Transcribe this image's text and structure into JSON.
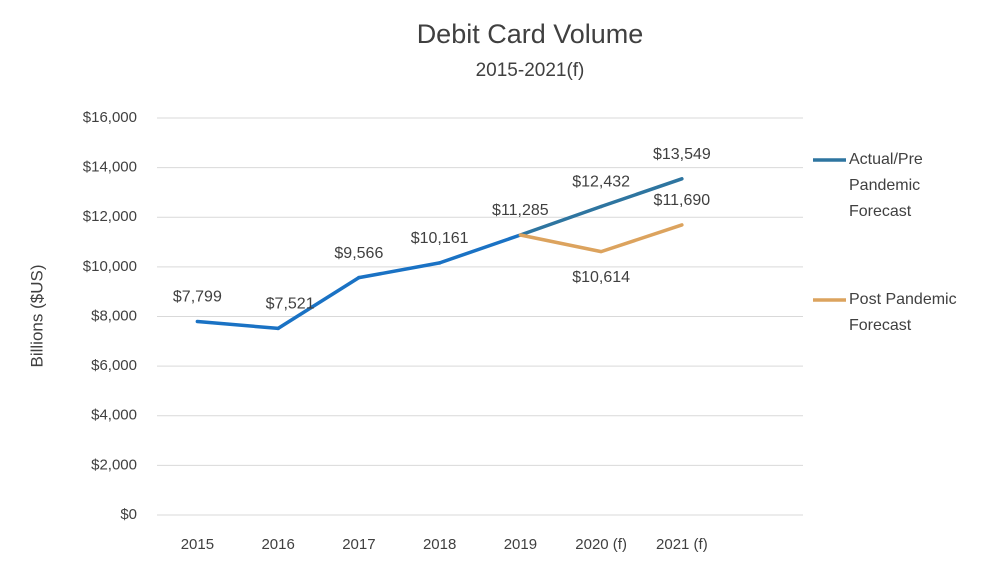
{
  "chart_data": {
    "type": "line",
    "title": "Debit Card Volume",
    "subtitle": "2015-2021(f)",
    "y_label": "Billions ($US)",
    "categories": [
      "2015",
      "2016",
      "2017",
      "2018",
      "2019",
      "2020 (f)",
      "2021 (f)"
    ],
    "series": [
      {
        "name": "Actual/Pre Pandemic Forecast",
        "color": "#2e75a0",
        "segment_colors": [
          "#1a72c4",
          "#1a72c4",
          "#1a72c4",
          "#1a72c4",
          "#2e75a0",
          "#2e75a0"
        ],
        "values": [
          7799,
          7521,
          9566,
          10161,
          11285,
          12432,
          13549
        ],
        "value_labels": [
          "$7,799",
          "$7,521",
          "$9,566",
          "$10,161",
          "$11,285",
          "$12,432",
          "$13,549"
        ]
      },
      {
        "name": "Post Pandemic Forecast",
        "color": "#dca35e",
        "values": [
          null,
          null,
          null,
          null,
          11285,
          10614,
          11690
        ],
        "value_labels": [
          null,
          null,
          null,
          null,
          null,
          "$10,614",
          "$11,690"
        ]
      }
    ],
    "ylim": [
      0,
      16000
    ],
    "yticks": [
      {
        "value": 0,
        "label": "$0"
      },
      {
        "value": 2000,
        "label": "$2,000"
      },
      {
        "value": 4000,
        "label": "$4,000"
      },
      {
        "value": 6000,
        "label": "$6,000"
      },
      {
        "value": 8000,
        "label": "$8,000"
      },
      {
        "value": 10000,
        "label": "$10,000"
      },
      {
        "value": 12000,
        "label": "$12,000"
      },
      {
        "value": 14000,
        "label": "$14,000"
      },
      {
        "value": 16000,
        "label": "$16,000"
      }
    ],
    "grid": true,
    "legend": "right"
  }
}
